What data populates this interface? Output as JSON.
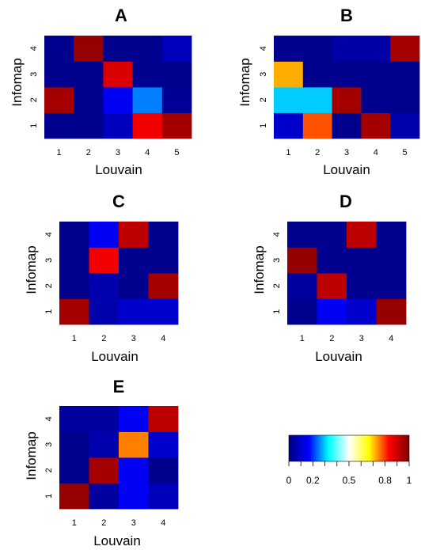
{
  "chart_data": [
    {
      "type": "heatmap",
      "title": "A",
      "xlabel": "Louvain",
      "ylabel": "Infomap",
      "x": [
        "1",
        "2",
        "3",
        "4",
        "5"
      ],
      "y": [
        "1",
        "2",
        "3",
        "4"
      ],
      "z": [
        [
          0.02,
          0.02,
          0.08,
          0.85,
          0.95
        ],
        [
          0.95,
          0.02,
          0.15,
          0.25,
          0.03
        ],
        [
          0.02,
          0.02,
          0.88,
          0.02,
          0.02
        ],
        [
          0.02,
          0.97,
          0.02,
          0.02,
          0.08
        ]
      ]
    },
    {
      "type": "heatmap",
      "title": "B",
      "xlabel": "Louvain",
      "ylabel": "Infomap",
      "x": [
        "1",
        "2",
        "3",
        "4",
        "5"
      ],
      "y": [
        "1",
        "2",
        "3",
        "4"
      ],
      "z": [
        [
          0.1,
          0.78,
          0.02,
          0.95,
          0.06
        ],
        [
          0.3,
          0.3,
          0.95,
          0.02,
          0.02
        ],
        [
          0.72,
          0.02,
          0.02,
          0.02,
          0.02
        ],
        [
          0.02,
          0.02,
          0.05,
          0.05,
          0.95
        ]
      ]
    },
    {
      "type": "heatmap",
      "title": "C",
      "xlabel": "Louvain",
      "ylabel": "Infomap",
      "x": [
        "1",
        "2",
        "3",
        "4"
      ],
      "y": [
        "1",
        "2",
        "3",
        "4"
      ],
      "z": [
        [
          0.95,
          0.06,
          0.1,
          0.1
        ],
        [
          0.02,
          0.06,
          0.02,
          0.95
        ],
        [
          0.02,
          0.85,
          0.02,
          0.02
        ],
        [
          0.02,
          0.15,
          0.92,
          0.02
        ]
      ]
    },
    {
      "type": "heatmap",
      "title": "D",
      "xlabel": "Louvain",
      "ylabel": "Infomap",
      "x": [
        "1",
        "2",
        "3",
        "4"
      ],
      "y": [
        "1",
        "2",
        "3",
        "4"
      ],
      "z": [
        [
          0.02,
          0.15,
          0.1,
          0.97
        ],
        [
          0.04,
          0.92,
          0.02,
          0.02
        ],
        [
          0.97,
          0.02,
          0.02,
          0.02
        ],
        [
          0.02,
          0.02,
          0.92,
          0.02
        ]
      ]
    },
    {
      "type": "heatmap",
      "title": "E",
      "xlabel": "Louvain",
      "ylabel": "Infomap",
      "x": [
        "1",
        "2",
        "3",
        "4"
      ],
      "y": [
        "1",
        "2",
        "3",
        "4"
      ],
      "z": [
        [
          0.97,
          0.04,
          0.15,
          0.08
        ],
        [
          0.02,
          0.95,
          0.15,
          0.02
        ],
        [
          0.02,
          0.06,
          0.75,
          0.1
        ],
        [
          0.04,
          0.04,
          0.15,
          0.92
        ]
      ]
    }
  ],
  "colorbar": {
    "ticks": [
      "0",
      "0.2",
      "0.5",
      "0.8",
      "1"
    ],
    "tick_values": [
      0,
      0.2,
      0.5,
      0.8,
      1
    ],
    "minor_tick_values": [
      0.1,
      0.3,
      0.4,
      0.6,
      0.7,
      0.9
    ],
    "range": [
      0,
      1
    ],
    "colors": [
      "#00007f",
      "#0000ff",
      "#00ffff",
      "#ffffff",
      "#ffff00",
      "#ff0000",
      "#7f0000"
    ]
  }
}
